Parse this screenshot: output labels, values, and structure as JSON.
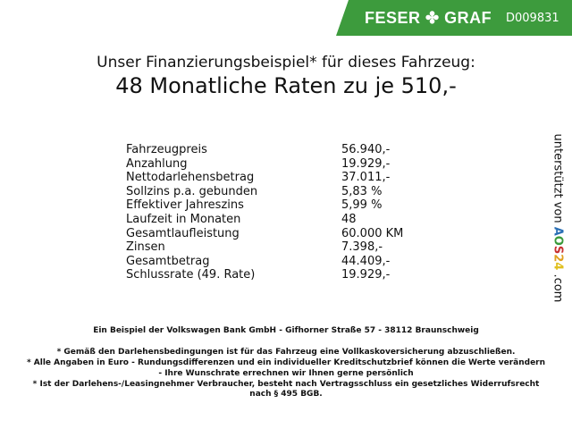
{
  "header": {
    "brand": "FESER",
    "brand2": "GRAF",
    "code": "D009831",
    "color": "#3d9b3d"
  },
  "title": {
    "line1": "Unser Finanzierungsbeispiel* für dieses Fahrzeug:",
    "line2": "48 Monatliche Raten zu je 510,-"
  },
  "rows": [
    {
      "label": "Fahrzeugpreis",
      "value": "56.940,-"
    },
    {
      "label": "Anzahlung",
      "value": "19.929,-"
    },
    {
      "label": "Nettodarlehensbetrag",
      "value": "37.011,-"
    },
    {
      "label": "Sollzins p.a. gebunden",
      "value": "5,83 %"
    },
    {
      "label": "Effektiver Jahreszins",
      "value": "5,99 %"
    },
    {
      "label": "Laufzeit in Monaten",
      "value": "48"
    },
    {
      "label": "Gesamtlaufleistung",
      "value": "60.000 KM"
    },
    {
      "label": "Zinsen",
      "value": "7.398,-"
    },
    {
      "label": "Gesamtbetrag",
      "value": "44.409,-"
    },
    {
      "label": "Schlussrate (49. Rate)",
      "value": "19.929,-"
    }
  ],
  "side": {
    "text": "unterstützt von",
    "logo": "AOS24",
    "suffix": ".com"
  },
  "footer": {
    "bank": "Ein Beispiel der Volkswagen Bank GmbH - Gifhorner Straße 57 - 38112 Braunschweig",
    "note1": "* Gemäß den Darlehensbedingungen ist für das Fahrzeug eine Vollkaskoversicherung abzuschließen.",
    "note2a": "* Alle Angaben in Euro - Rundungsdifferenzen und ein individueller Kreditschutzbrief können die Werte verändern",
    "note2b": "- Ihre Wunschrate errechnen wir Ihnen gerne persönlich",
    "note3a": "* Ist der Darlehens-/Leasingnehmer Verbraucher, besteht nach Vertragsschluss ein gesetzliches Widerrufsrecht",
    "note3b": "nach § 495 BGB."
  }
}
